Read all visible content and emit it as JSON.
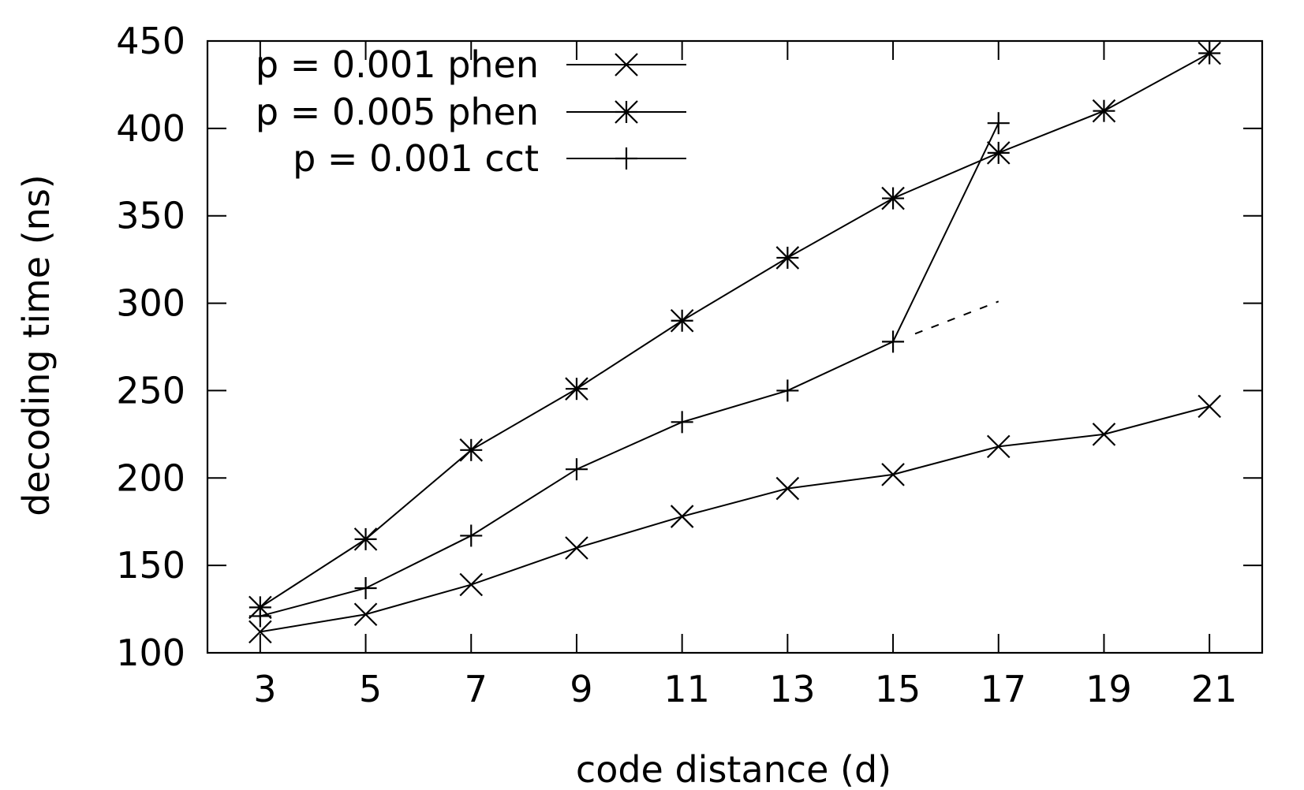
{
  "chart_data": {
    "type": "line",
    "xlabel": "code distance (d)",
    "ylabel": "decoding time (ns)",
    "xlim": [
      2,
      22
    ],
    "ylim": [
      100,
      450
    ],
    "xticks": [
      3,
      5,
      7,
      9,
      11,
      13,
      15,
      17,
      19,
      21
    ],
    "yticks": [
      100,
      150,
      200,
      250,
      300,
      350,
      400,
      450
    ],
    "grid": false,
    "legend_position": "top-left",
    "series": [
      {
        "name": "p = 0.001 phen",
        "marker": "x",
        "x": [
          3,
          5,
          7,
          9,
          11,
          13,
          15,
          17,
          19,
          21
        ],
        "y": [
          112,
          122,
          139,
          160,
          178,
          194,
          202,
          218,
          225,
          241
        ]
      },
      {
        "name": "p = 0.005 phen",
        "marker": "asterisk",
        "x": [
          3,
          5,
          7,
          9,
          11,
          13,
          15,
          17,
          19,
          21
        ],
        "y": [
          126,
          165,
          216,
          251,
          290,
          326,
          360,
          386,
          410,
          443
        ]
      },
      {
        "name": "p = 0.001 cct",
        "marker": "plus",
        "x": [
          3,
          5,
          7,
          9,
          11,
          13,
          15,
          17
        ],
        "y": [
          121,
          137,
          167,
          205,
          232,
          250,
          278,
          403
        ]
      }
    ],
    "extrapolation": {
      "style": "dashed",
      "x": [
        15,
        17
      ],
      "y": [
        278,
        301
      ]
    }
  }
}
